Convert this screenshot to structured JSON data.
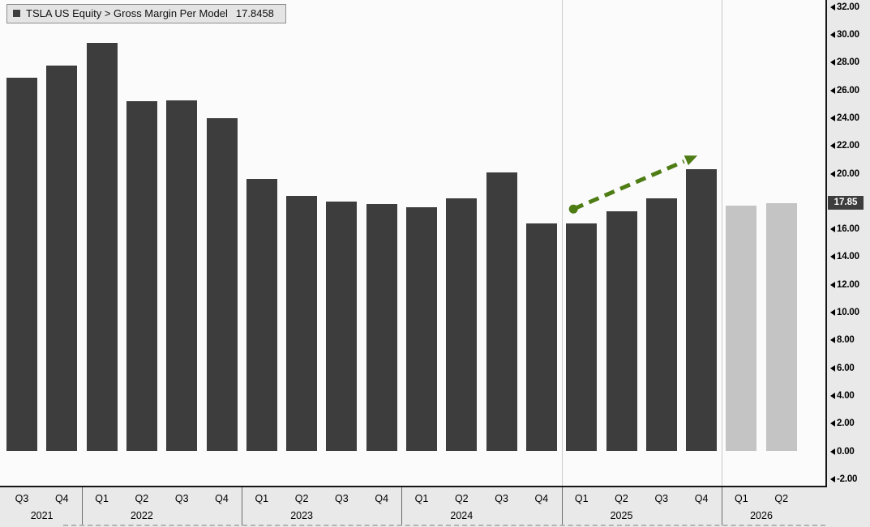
{
  "legend": {
    "label": "TSLA US Equity > Gross Margin Per Model",
    "value": "17.8458",
    "swatch_color": "#3d3d3d"
  },
  "chart_data": {
    "type": "bar",
    "title": "TSLA US Equity > Gross Margin Per Model",
    "last_value": 17.8458,
    "categories": [
      "Q3 2021",
      "Q4 2021",
      "Q1 2022",
      "Q2 2022",
      "Q3 2022",
      "Q4 2022",
      "Q1 2023",
      "Q2 2023",
      "Q3 2023",
      "Q4 2023",
      "Q1 2024",
      "Q2 2024",
      "Q3 2024",
      "Q4 2024",
      "Q1 2025",
      "Q2 2025",
      "Q3 2025",
      "Q4 2025",
      "Q1 2026",
      "Q2 2026"
    ],
    "values": [
      26.9,
      27.8,
      29.4,
      25.2,
      25.3,
      24.0,
      19.6,
      18.4,
      18.0,
      17.8,
      17.6,
      18.2,
      20.1,
      16.4,
      16.4,
      17.3,
      18.2,
      20.3,
      17.7,
      17.85
    ],
    "is_estimate": [
      false,
      false,
      false,
      false,
      false,
      false,
      false,
      false,
      false,
      false,
      false,
      false,
      false,
      false,
      false,
      false,
      false,
      false,
      true,
      true
    ],
    "xlabel": "",
    "ylabel": "",
    "ylim": [
      -2,
      32
    ],
    "ytick_step": 2,
    "grid": false,
    "legend_position": "top-left",
    "bar_color": "#3d3d3d",
    "estimate_bar_color": "#c4c4c4",
    "axis_marker": {
      "label": "17.85",
      "value": 17.85,
      "bg": "#3d3d3d",
      "fg": "#ffffff"
    },
    "vertical_separators_after": [
      "Q4 2024",
      "Q4 2025"
    ],
    "trend_arrow": {
      "color": "#4e7c15",
      "style": "dashed",
      "from": {
        "category": "Q1 2025",
        "value": 17.45
      },
      "to": {
        "category": "Q4 2025",
        "value": 21.3
      },
      "meaning": "upward gross-margin trend annotation"
    }
  }
}
